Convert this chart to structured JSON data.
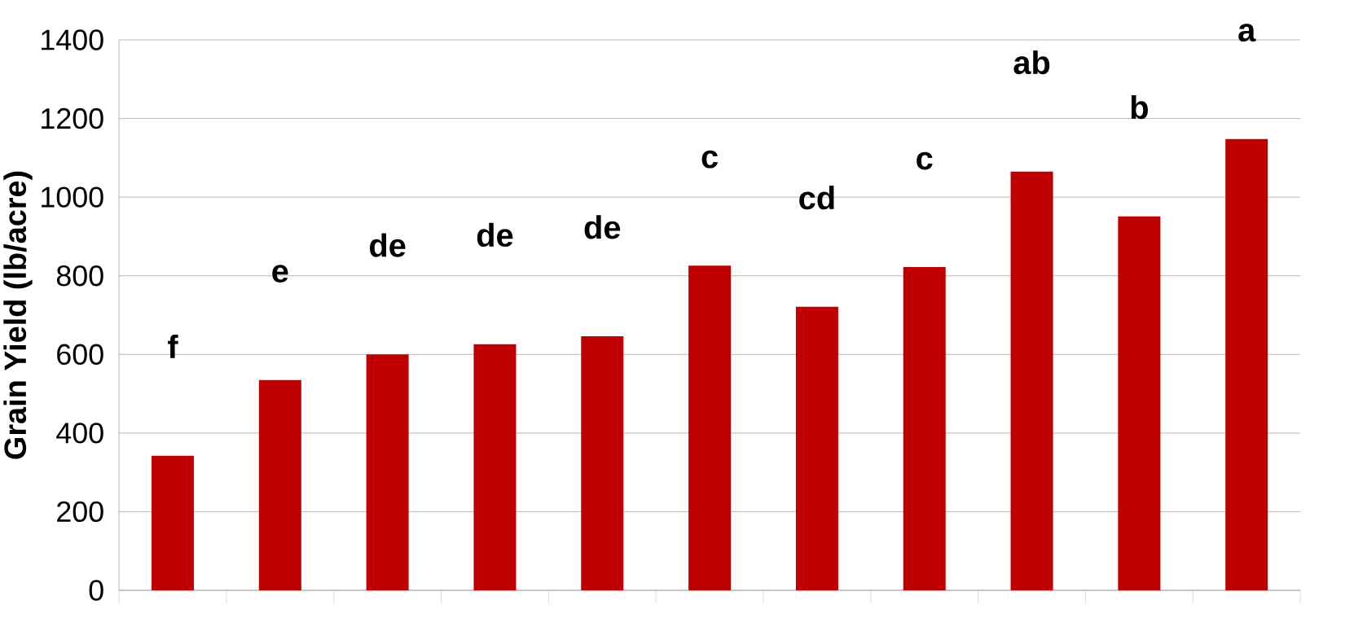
{
  "chart_data": {
    "type": "bar",
    "ylabel": "Grain Yield (lb/acre)",
    "categories": [
      null,
      null,
      null,
      null,
      null,
      null,
      null,
      null,
      null,
      null,
      null
    ],
    "values": [
      342,
      535,
      600,
      626,
      646,
      826,
      721,
      822,
      1065,
      951,
      1148
    ],
    "color": "#c00000",
    "ylim": [
      0,
      1400
    ],
    "yticks": [
      0,
      200,
      400,
      600,
      800,
      1000,
      1200,
      1400
    ],
    "grid": "y",
    "annotations": [
      "f",
      "e",
      "de",
      "de",
      "de",
      "c",
      "cd",
      "c",
      "ab",
      "b",
      "a"
    ]
  }
}
